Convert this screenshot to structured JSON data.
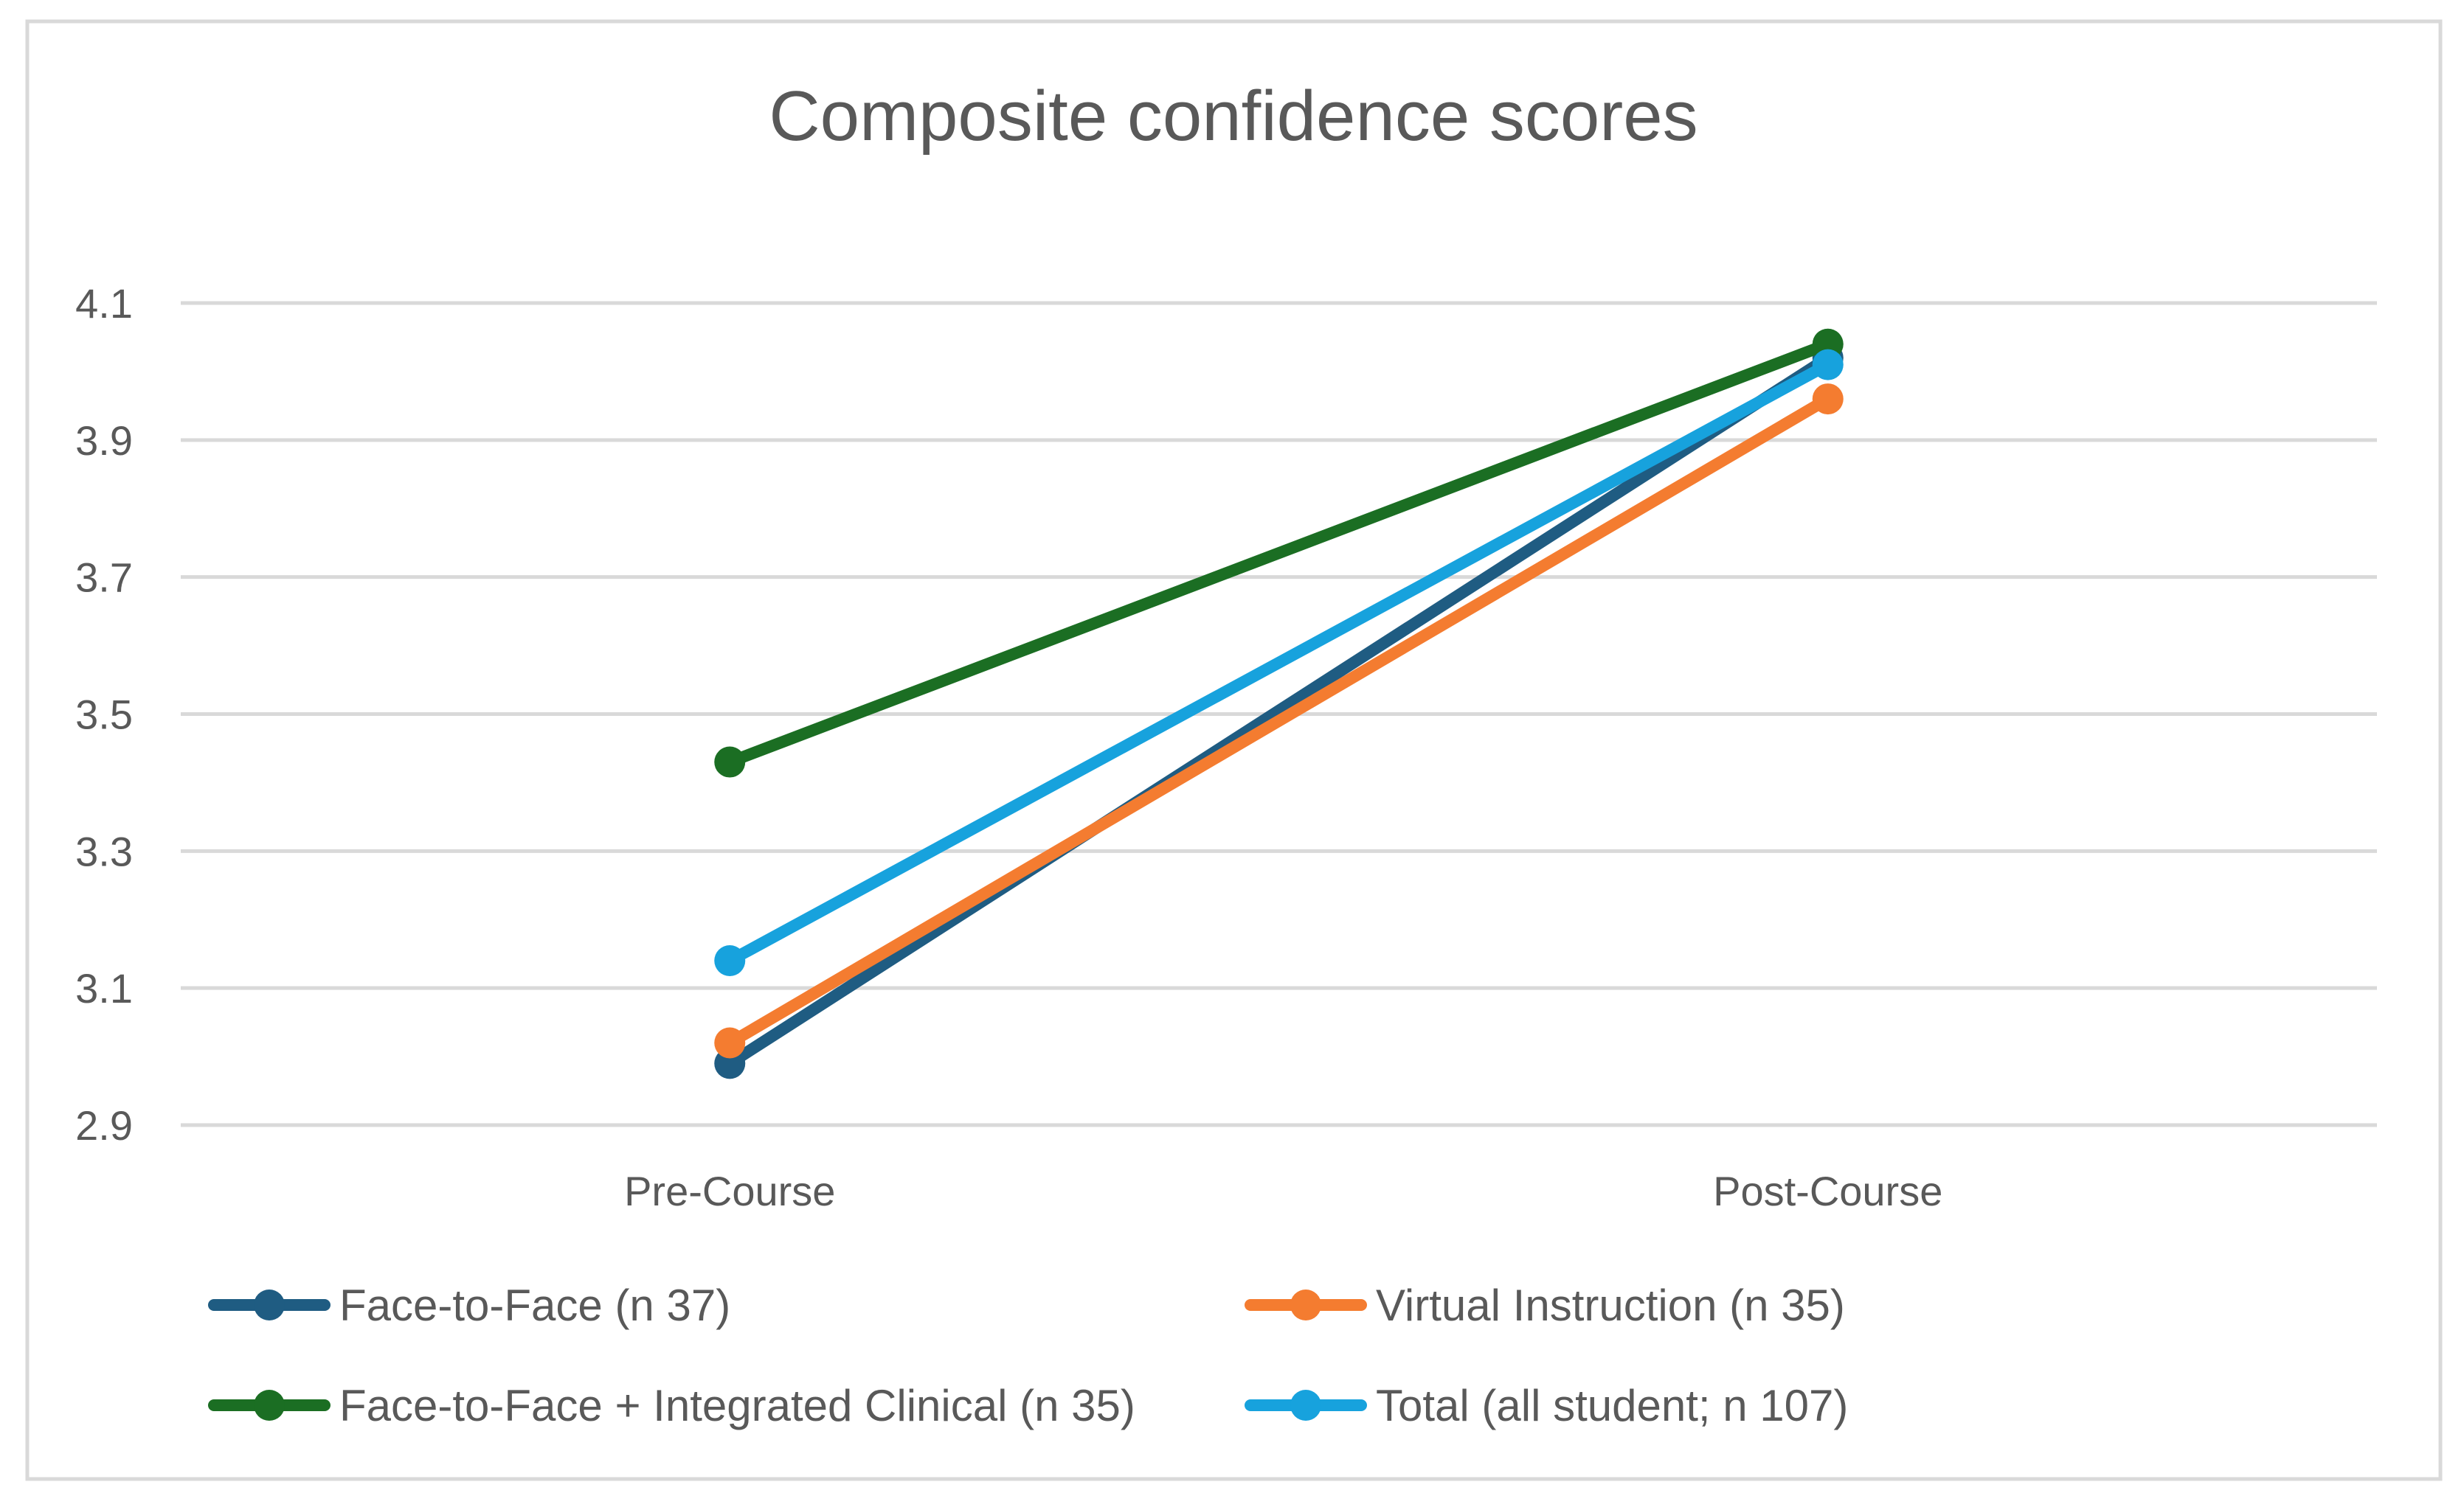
{
  "chart_data": {
    "type": "line",
    "title": "Composite confidence scores",
    "xlabel": "",
    "ylabel": "",
    "categories": [
      "Pre-Course",
      "Post-Course"
    ],
    "ylim": [
      2.9,
      4.1
    ],
    "yticks": [
      2.9,
      3.1,
      3.3,
      3.5,
      3.7,
      3.9,
      4.1
    ],
    "ytick_labels": [
      "2.9",
      "3.1",
      "3.3",
      "3.5",
      "3.7",
      "3.9",
      "4.1"
    ],
    "grid": true,
    "legend_position": "bottom",
    "series": [
      {
        "name": "Face-to-Face (n 37)",
        "color": "#1F5C82",
        "values": [
          2.99,
          4.02
        ]
      },
      {
        "name": "Virtual Instruction (n 35)",
        "color": "#F47C30",
        "values": [
          3.02,
          3.96
        ]
      },
      {
        "name": "Face-to-Face + Integrated Clinical (n 35)",
        "color": "#1B6E23",
        "values": [
          3.43,
          4.04
        ]
      },
      {
        "name": "Total (all student; n 107)",
        "color": "#17A2DD",
        "values": [
          3.14,
          4.01
        ]
      }
    ]
  }
}
